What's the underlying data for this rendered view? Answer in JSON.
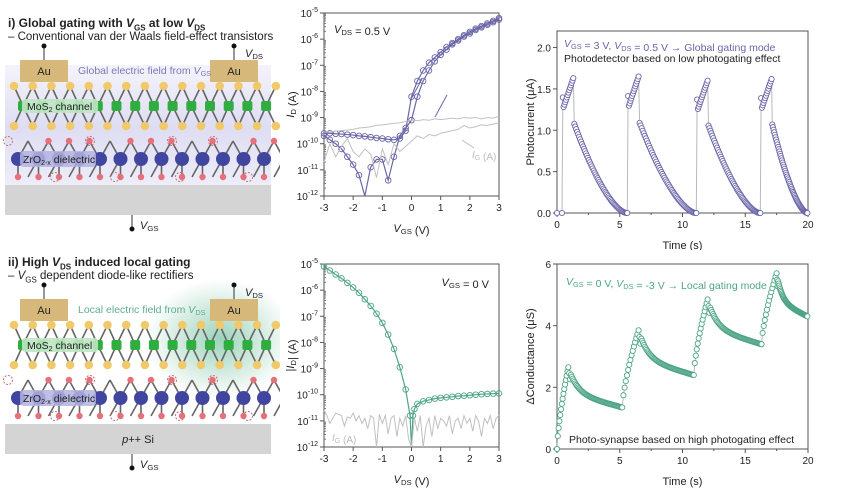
{
  "schematics": [
    {
      "title_prefix": "i) Global gating with ",
      "title_v1": "V",
      "title_v1_sub": "GS",
      "title_mid": " at low ",
      "title_v2": "V",
      "title_v2_sub": "DS",
      "subtitle": "– Conventional van der Waals field-effect transistors",
      "field_label": "Global electric field from ",
      "field_v": "V",
      "field_v_sub": "GS",
      "field_color": "#7b78b8",
      "electrode_label": "Au",
      "channel_label": "MoS",
      "channel_sub": "2",
      "channel_suffix": " channel",
      "dielectric_label": "ZrO",
      "dielectric_sub": "2-x",
      "dielectric_suffix": " dielectric",
      "substrate_label": "",
      "vds_label": "V",
      "vds_sub": "DS",
      "vgs_label": "V",
      "vgs_sub": "GS",
      "mode": "global"
    },
    {
      "title_prefix": "ii) High ",
      "title_v1": "V",
      "title_v1_sub": "DS",
      "title_mid": " induced local gating",
      "title_v2": "",
      "title_v2_sub": "",
      "subtitle_v": "V",
      "subtitle_v_sub": "GS",
      "subtitle": " dependent diode-like rectifiers",
      "field_label": "Local electric field from ",
      "field_v": "V",
      "field_v_sub": "DS",
      "field_color": "#5fae92",
      "electrode_label": "Au",
      "channel_label": "MoS",
      "channel_sub": "2",
      "channel_suffix": " channel",
      "dielectric_label": "ZrO",
      "dielectric_sub": "2-x",
      "dielectric_suffix": " dielectric",
      "substrate_label": "p++ Si",
      "vds_label": "V",
      "vds_sub": "DS",
      "vgs_label": "V",
      "vgs_sub": "GS",
      "mode": "local"
    }
  ],
  "colors": {
    "purple": "#6a66a8",
    "green": "#4ea585",
    "gray": "#c0c0c0",
    "au": "#d6b97a",
    "s_atom": "#f0c96a",
    "mo_atom": "#2fae3f",
    "zr_atom": "#4046a0",
    "o_atom": "#e8707a",
    "substrate": "#d4d4d4"
  },
  "chart_data": [
    {
      "id": "transfer",
      "type": "line",
      "yscale": "log",
      "xlabel": "V_GS (V)",
      "ylabel": "I_D (A)",
      "xlim": [
        -3,
        3
      ],
      "ylim_exp": [
        -12,
        -5
      ],
      "xticks": [
        "-3",
        "-2",
        "-1",
        "0",
        "1",
        "2",
        "3"
      ],
      "yticks": [
        "10^-12",
        "10^-11",
        "10^-10",
        "10^-9",
        "10^-8",
        "10^-7",
        "10^-6",
        "10^-5"
      ],
      "annotation": "V_DS = 0.5 V",
      "gate_label": "I_G (A)",
      "series": [
        {
          "name": "forward sweep",
          "x": [
            -3,
            -2.8,
            -2.6,
            -2.4,
            -2.2,
            -2.0,
            -1.8,
            -1.6,
            -1.4,
            -1.2,
            -1.0,
            -0.8,
            -0.6,
            -0.4,
            -0.2,
            0,
            0.2,
            0.4,
            0.6,
            0.8,
            1.0,
            1.2,
            1.4,
            1.6,
            1.8,
            2.0,
            2.2,
            2.4,
            2.6,
            2.8,
            3.0
          ],
          "log10y": [
            -9.6,
            -9.6,
            -9.62,
            -9.63,
            -9.65,
            -9.67,
            -9.7,
            -9.72,
            -9.75,
            -9.78,
            -9.8,
            -9.83,
            -9.85,
            -9.8,
            -9.5,
            -8.2,
            -7.6,
            -7.2,
            -6.9,
            -6.7,
            -6.5,
            -6.3,
            -6.15,
            -6.0,
            -5.85,
            -5.72,
            -5.6,
            -5.5,
            -5.4,
            -5.3,
            -5.2
          ]
        },
        {
          "name": "reverse sweep",
          "x": [
            3.0,
            2.8,
            2.6,
            2.4,
            2.2,
            2.0,
            1.8,
            1.6,
            1.4,
            1.2,
            1.0,
            0.8,
            0.6,
            0.4,
            0.2,
            0,
            -0.2,
            -0.4,
            -0.6,
            -0.8,
            -1.0,
            -1.2,
            -1.4,
            -1.6,
            -1.8,
            -2.0,
            -2.2,
            -2.4,
            -2.6,
            -2.8,
            -3.0
          ],
          "log10y": [
            -5.25,
            -5.35,
            -5.45,
            -5.55,
            -5.65,
            -5.78,
            -5.9,
            -6.05,
            -6.2,
            -6.4,
            -6.6,
            -6.85,
            -7.2,
            -7.6,
            -8.2,
            -9.1,
            -9.4,
            -9.7,
            -10.5,
            -11.4,
            -10.6,
            -10.6,
            -10.9,
            -12,
            -11.2,
            -10.8,
            -10.5,
            -10.2,
            -10.0,
            -9.85,
            -9.7
          ]
        },
        {
          "name": "I_G forward",
          "x": [
            -3,
            -2.8,
            -2.6,
            -2.4,
            -2.2,
            -2,
            -1.8,
            -1.6,
            -1.4,
            -1.2,
            -1,
            -0.8,
            -0.6,
            -0.4,
            -0.2,
            0,
            0.2,
            0.4,
            0.6,
            0.8,
            1,
            1.2,
            1.4,
            1.6,
            1.8,
            2,
            2.2,
            2.4,
            2.6,
            2.8,
            3
          ],
          "log10y": [
            -9.55,
            -9.55,
            -9.52,
            -9.5,
            -9.48,
            -9.45,
            -9.4,
            -9.38,
            -9.35,
            -9.3,
            -9.28,
            -9.25,
            -9.22,
            -9.2,
            -9.15,
            -9.1,
            -9.12,
            -9.08,
            -9.1,
            -9.05,
            -9.08,
            -9.05,
            -9.02,
            -9.05,
            -9.0,
            -9.02,
            -9.0,
            -9.05,
            -9.0,
            -9.02,
            -8.95
          ]
        },
        {
          "name": "I_G reverse",
          "x": [
            3,
            2.8,
            2.6,
            2.4,
            2.2,
            2,
            1.8,
            1.6,
            1.4,
            1.2,
            1,
            0.8,
            0.6,
            0.4,
            0.2,
            0,
            -0.2,
            -0.4,
            -0.6,
            -0.8,
            -1,
            -1.2,
            -1.4,
            -1.6,
            -1.8,
            -2,
            -2.2,
            -2.4,
            -2.6,
            -2.8,
            -3
          ],
          "log10y": [
            -9.2,
            -9.25,
            -9.3,
            -9.28,
            -9.35,
            -9.4,
            -9.3,
            -9.45,
            -9.5,
            -9.55,
            -9.6,
            -9.7,
            -9.65,
            -9.8,
            -9.7,
            -9.9,
            -10.1,
            -10.3,
            -10.0,
            -10.8,
            -10.2,
            -11.3,
            -10.4,
            -10.2,
            -10.5,
            -10.3,
            -9.8,
            -10.1,
            -10.5,
            -10.0,
            -10.7
          ]
        }
      ]
    },
    {
      "id": "photocurrent",
      "type": "scatter",
      "xlabel": "Time (s)",
      "ylabel": "Photocurrent (μA)",
      "xlim": [
        0,
        20
      ],
      "ylim": [
        0,
        2.2
      ],
      "xticks": [
        "0",
        "5",
        "10",
        "15",
        "20"
      ],
      "yticks": [
        "0.0",
        "0.5",
        "1.0",
        "1.5",
        "2.0"
      ],
      "annotation_line1": "V_GS = 3 V, V_DS = 0.5 V → Global gating mode",
      "annotation_line2": "Photodetector based on low photogating effect",
      "pulses": [
        {
          "on": 0.4,
          "off": 1.3,
          "peak": 1.63
        },
        {
          "on": 5.6,
          "off": 6.5,
          "peak": 1.65
        },
        {
          "on": 11.1,
          "off": 12.0,
          "peak": 1.6
        },
        {
          "on": 16.2,
          "off": 17.1,
          "peak": 1.62
        }
      ],
      "decay_end_value": 0.0
    },
    {
      "id": "output",
      "type": "line",
      "yscale": "log",
      "xlabel": "V_DS (V)",
      "ylabel": "|I_D| (A)",
      "xlim": [
        -3,
        3
      ],
      "ylim_exp": [
        -12,
        -5
      ],
      "xticks": [
        "-3",
        "-2",
        "-1",
        "0",
        "1",
        "2",
        "3"
      ],
      "yticks": [
        "10^-12",
        "10^-11",
        "10^-10",
        "10^-9",
        "10^-8",
        "10^-7",
        "10^-6",
        "10^-5"
      ],
      "annotation": "V_GS = 0 V",
      "gate_label": "I_G (A)",
      "series": [
        {
          "name": "I_D",
          "x": [
            -3,
            -2.8,
            -2.6,
            -2.4,
            -2.2,
            -2.0,
            -1.8,
            -1.6,
            -1.4,
            -1.2,
            -1.0,
            -0.8,
            -0.6,
            -0.4,
            -0.2,
            -0.05,
            0,
            0.05,
            0.1,
            0.2,
            0.4,
            0.6,
            0.8,
            1.0,
            1.2,
            1.4,
            1.6,
            1.8,
            2.0,
            2.2,
            2.4,
            2.6,
            2.8,
            3.0
          ],
          "log10y": [
            -5.1,
            -5.25,
            -5.4,
            -5.55,
            -5.72,
            -5.9,
            -6.1,
            -6.35,
            -6.6,
            -6.9,
            -7.25,
            -7.7,
            -8.25,
            -8.95,
            -9.8,
            -10.8,
            -12,
            -10.8,
            -10.55,
            -10.35,
            -10.25,
            -10.2,
            -10.15,
            -10.12,
            -10.1,
            -10.08,
            -10.05,
            -10.04,
            -10.02,
            -10.0,
            -9.98,
            -9.97,
            -9.96,
            -9.95
          ]
        },
        {
          "name": "I_G",
          "x": [
            -3,
            -2.9,
            -2.8,
            -2.7,
            -2.6,
            -2.5,
            -2.4,
            -2.3,
            -2.2,
            -2.1,
            -2,
            -1.9,
            -1.8,
            -1.7,
            -1.6,
            -1.5,
            -1.4,
            -1.3,
            -1.2,
            -1.1,
            -1,
            -0.9,
            -0.8,
            -0.7,
            -0.6,
            -0.5,
            -0.4,
            -0.3,
            -0.2,
            -0.1,
            0,
            0.1,
            0.2,
            0.3,
            0.4,
            0.5,
            0.6,
            0.7,
            0.8,
            0.9,
            1,
            1.1,
            1.2,
            1.3,
            1.4,
            1.5,
            1.6,
            1.7,
            1.8,
            1.9,
            2,
            2.1,
            2.2,
            2.3,
            2.4,
            2.5,
            2.6,
            2.7,
            2.8,
            2.9,
            3
          ],
          "log10y": [
            -10.6,
            -10.8,
            -11.1,
            -10.9,
            -10.7,
            -10.75,
            -10.8,
            -11.2,
            -10.85,
            -10.9,
            -10.7,
            -11.0,
            -10.8,
            -11.1,
            -10.9,
            -11.3,
            -10.8,
            -10.9,
            -12,
            -10.75,
            -11.1,
            -10.8,
            -11.5,
            -10.9,
            -10.8,
            -11.6,
            -10.9,
            -11.2,
            -10.8,
            -11.7,
            -12,
            -10.9,
            -11.4,
            -10.8,
            -12,
            -11.2,
            -10.9,
            -11.6,
            -10.8,
            -11.3,
            -10.9,
            -11.0,
            -11.2,
            -10.8,
            -11.5,
            -11.0,
            -10.9,
            -11.3,
            -10.8,
            -11.1,
            -10.9,
            -11.4,
            -10.8,
            -11.0,
            -11.6,
            -10.9,
            -11.1,
            -10.8,
            -11.3,
            -10.9,
            -10.8
          ]
        }
      ]
    },
    {
      "id": "conductance",
      "type": "scatter",
      "xlabel": "Time (s)",
      "ylabel": "ΔConductance (μS)",
      "xlim": [
        0,
        20
      ],
      "ylim": [
        0,
        6
      ],
      "xticks": [
        "0",
        "5",
        "10",
        "15",
        "20"
      ],
      "yticks": [
        "0",
        "2",
        "4",
        "6"
      ],
      "annotation_line1": "V_GS = 0 V, V_DS = -3 V → Local gating mode",
      "annotation_line2": "Photo-synapse based on high photogating effect",
      "pulses": [
        {
          "on": 0.0,
          "off": 0.9,
          "start": 0.0,
          "peak": 2.65,
          "decay_to": 1.35
        },
        {
          "on": 5.2,
          "off": 6.5,
          "start": 1.35,
          "peak": 3.85,
          "decay_to": 2.4
        },
        {
          "on": 10.9,
          "off": 12.0,
          "start": 2.4,
          "peak": 4.85,
          "decay_to": 3.4
        },
        {
          "on": 16.3,
          "off": 17.5,
          "start": 3.4,
          "peak": 5.7,
          "decay_to": 4.3
        }
      ]
    }
  ]
}
